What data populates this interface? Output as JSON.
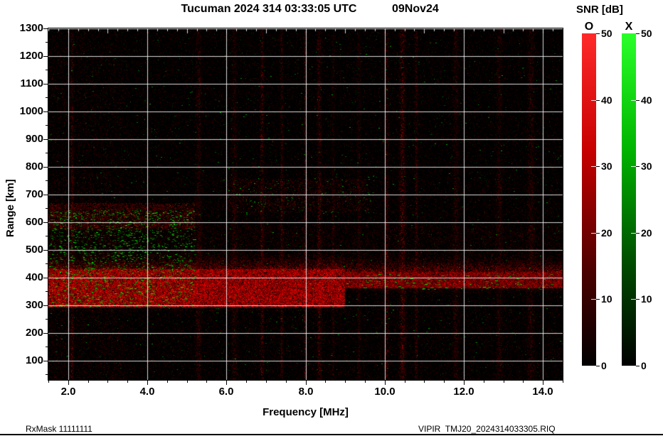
{
  "header": {
    "title": "Tucuman 2024 314 03:33:05 UTC",
    "date": "09Nov24",
    "snr_label": "SNR [dB]"
  },
  "axes": {
    "x_label": "Frequency [MHz]",
    "y_label": "Range [km]",
    "x_ticks": [
      "2.0",
      "4.0",
      "6.0",
      "8.0",
      "10.0",
      "12.0",
      "14.0"
    ],
    "y_ticks": [
      "100",
      "200",
      "300",
      "400",
      "500",
      "600",
      "700",
      "800",
      "900",
      "1000",
      "1100",
      "1200",
      "1300"
    ]
  },
  "colorbars": [
    {
      "id": "O",
      "label": "O",
      "min": 0,
      "max": 50,
      "ticks": [
        50,
        40,
        30,
        20,
        10,
        0
      ],
      "gradient": [
        "#ff2a2a",
        "#c80000",
        "#500000",
        "#000000"
      ]
    },
    {
      "id": "X",
      "label": "X",
      "min": 0,
      "max": 50,
      "ticks": [
        50,
        40,
        30,
        20,
        10,
        0
      ],
      "gradient": [
        "#2aff2a",
        "#00b400",
        "#004a00",
        "#000000"
      ]
    }
  ],
  "footer": {
    "left": "RxMask 11111111",
    "right": "VIPIR  TMJ20_2024314033305.RIQ"
  },
  "chart_data": {
    "type": "heatmap",
    "title": "Tucuman 2024 314 03:33:05 UTC   09Nov24",
    "station": "Tucuman",
    "timestamp_utc": "2024 314 03:33:05",
    "xlabel": "Frequency [MHz]",
    "ylabel": "Range [km]",
    "xlim": [
      1.5,
      14.5
    ],
    "ylim": [
      30,
      1300
    ],
    "x_major_ticks": [
      2,
      4,
      6,
      8,
      10,
      12,
      14
    ],
    "x_minor_step": 0.5,
    "top_minor_step": 0.25,
    "y_major_ticks": [
      100,
      200,
      300,
      400,
      500,
      600,
      700,
      800,
      900,
      1000,
      1100,
      1200,
      1300
    ],
    "y_minor_step": 50,
    "grid": true,
    "grid_color": "#ffffff",
    "plot_background": "#000000",
    "colorbars": [
      {
        "name": "O",
        "quantity": "SNR",
        "units": "dB",
        "min": 0,
        "max": 50,
        "ticks": [
          0,
          10,
          20,
          30,
          40,
          50
        ],
        "color": "#ff0000"
      },
      {
        "name": "X",
        "quantity": "SNR",
        "units": "dB",
        "min": 0,
        "max": 50,
        "ticks": [
          0,
          10,
          20,
          30,
          40,
          50
        ],
        "color": "#00c800"
      }
    ],
    "features": {
      "seed": 1234314,
      "description": "Ionogram SNR field: sparse red O-mode noise over black background, strong diffuse red echo band near 300-430 km across all frequencies (stepping to ~360-420 km above 9 MHz), dense green X-mode speckle at low frequencies 300-650 km, vertical RFI streaks, faint second-hop red band near 600 km below ~5 MHz, scattered green echoes up to 1250 km.",
      "echo_band": {
        "step_freq_mhz": 9.0,
        "lower_segment_km": [
          292,
          430
        ],
        "upper_segment_km": [
          360,
          420
        ]
      },
      "second_band": {
        "freq_max_mhz": 5.2,
        "range_km": [
          575,
          668
        ]
      },
      "rfi_lines_mhz": [
        2.1,
        5.3,
        6.2,
        6.9,
        7.4,
        8.0,
        8.35,
        8.7,
        9.35,
        10.05,
        10.45,
        10.8,
        11.8,
        12.9,
        13.7
      ],
      "green": {
        "dense_freq_mhz": [
          1.5,
          5.2
        ],
        "dense_range_km": [
          295,
          645
        ],
        "dense_count": 1700,
        "scatter_count": 900,
        "cluster_freq_mhz": [
          6.0,
          9.8
        ],
        "cluster_range_km": [
          630,
          760
        ],
        "cluster_count": 130,
        "band_freq_mhz": [
          9.0,
          14.4
        ],
        "band_range_km": [
          358,
          412
        ],
        "band_count": 90
      }
    }
  }
}
